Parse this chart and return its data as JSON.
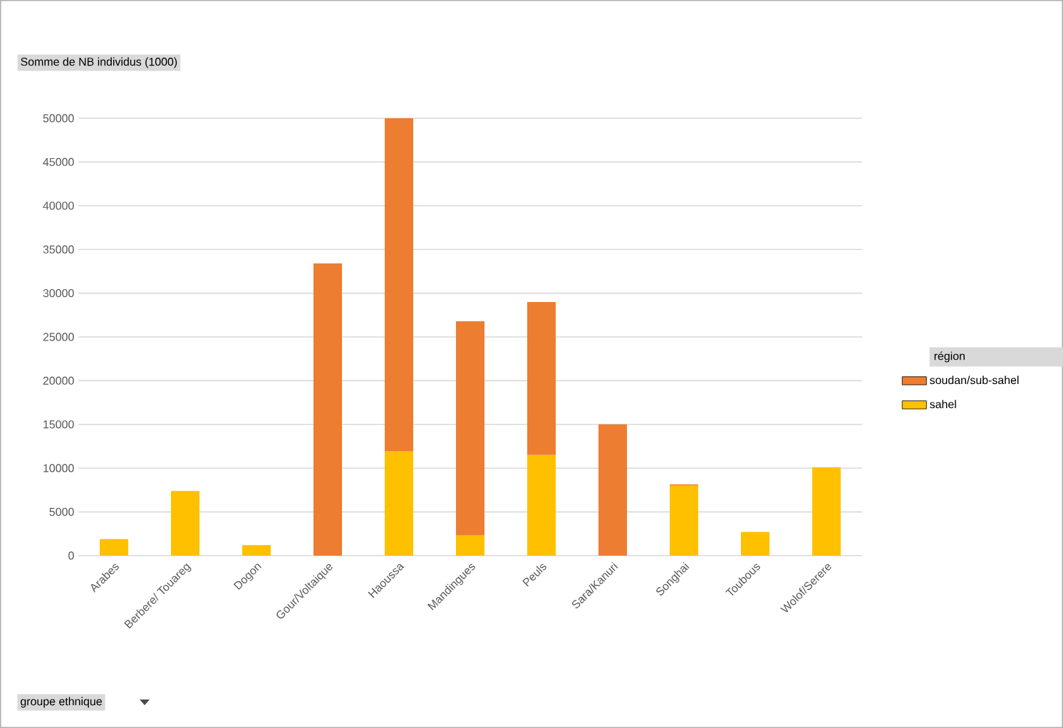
{
  "chart_data": {
    "type": "bar",
    "stacked": true,
    "ylabel": "Somme de NB individus (1000)",
    "annotations": [
      "groupe ethnique"
    ],
    "legend_title": "région",
    "categories": [
      "Arabes",
      "Berbere/ Touareg",
      "Dogon",
      "Gour/Voltaique",
      "Haoussa",
      "Mandingues",
      "Peuls",
      "Sara/Kanuri",
      "Songhai",
      "Toubous",
      "Wolof/Serere"
    ],
    "series": [
      {
        "name": "sahel",
        "color": "#ffc000",
        "values": [
          1900,
          7400,
          1200,
          0,
          11900,
          2300,
          11500,
          0,
          8000,
          2700,
          10100
        ]
      },
      {
        "name": "soudan/sub-sahel",
        "color": "#ed7d31",
        "values": [
          0,
          0,
          0,
          33400,
          38100,
          24500,
          17500,
          15000,
          150,
          0,
          0
        ]
      }
    ],
    "ylim": [
      0,
      50000
    ],
    "yticks": [
      0,
      5000,
      10000,
      15000,
      20000,
      25000,
      30000,
      35000,
      40000,
      45000,
      50000
    ],
    "grid": "y",
    "legend": "right"
  }
}
